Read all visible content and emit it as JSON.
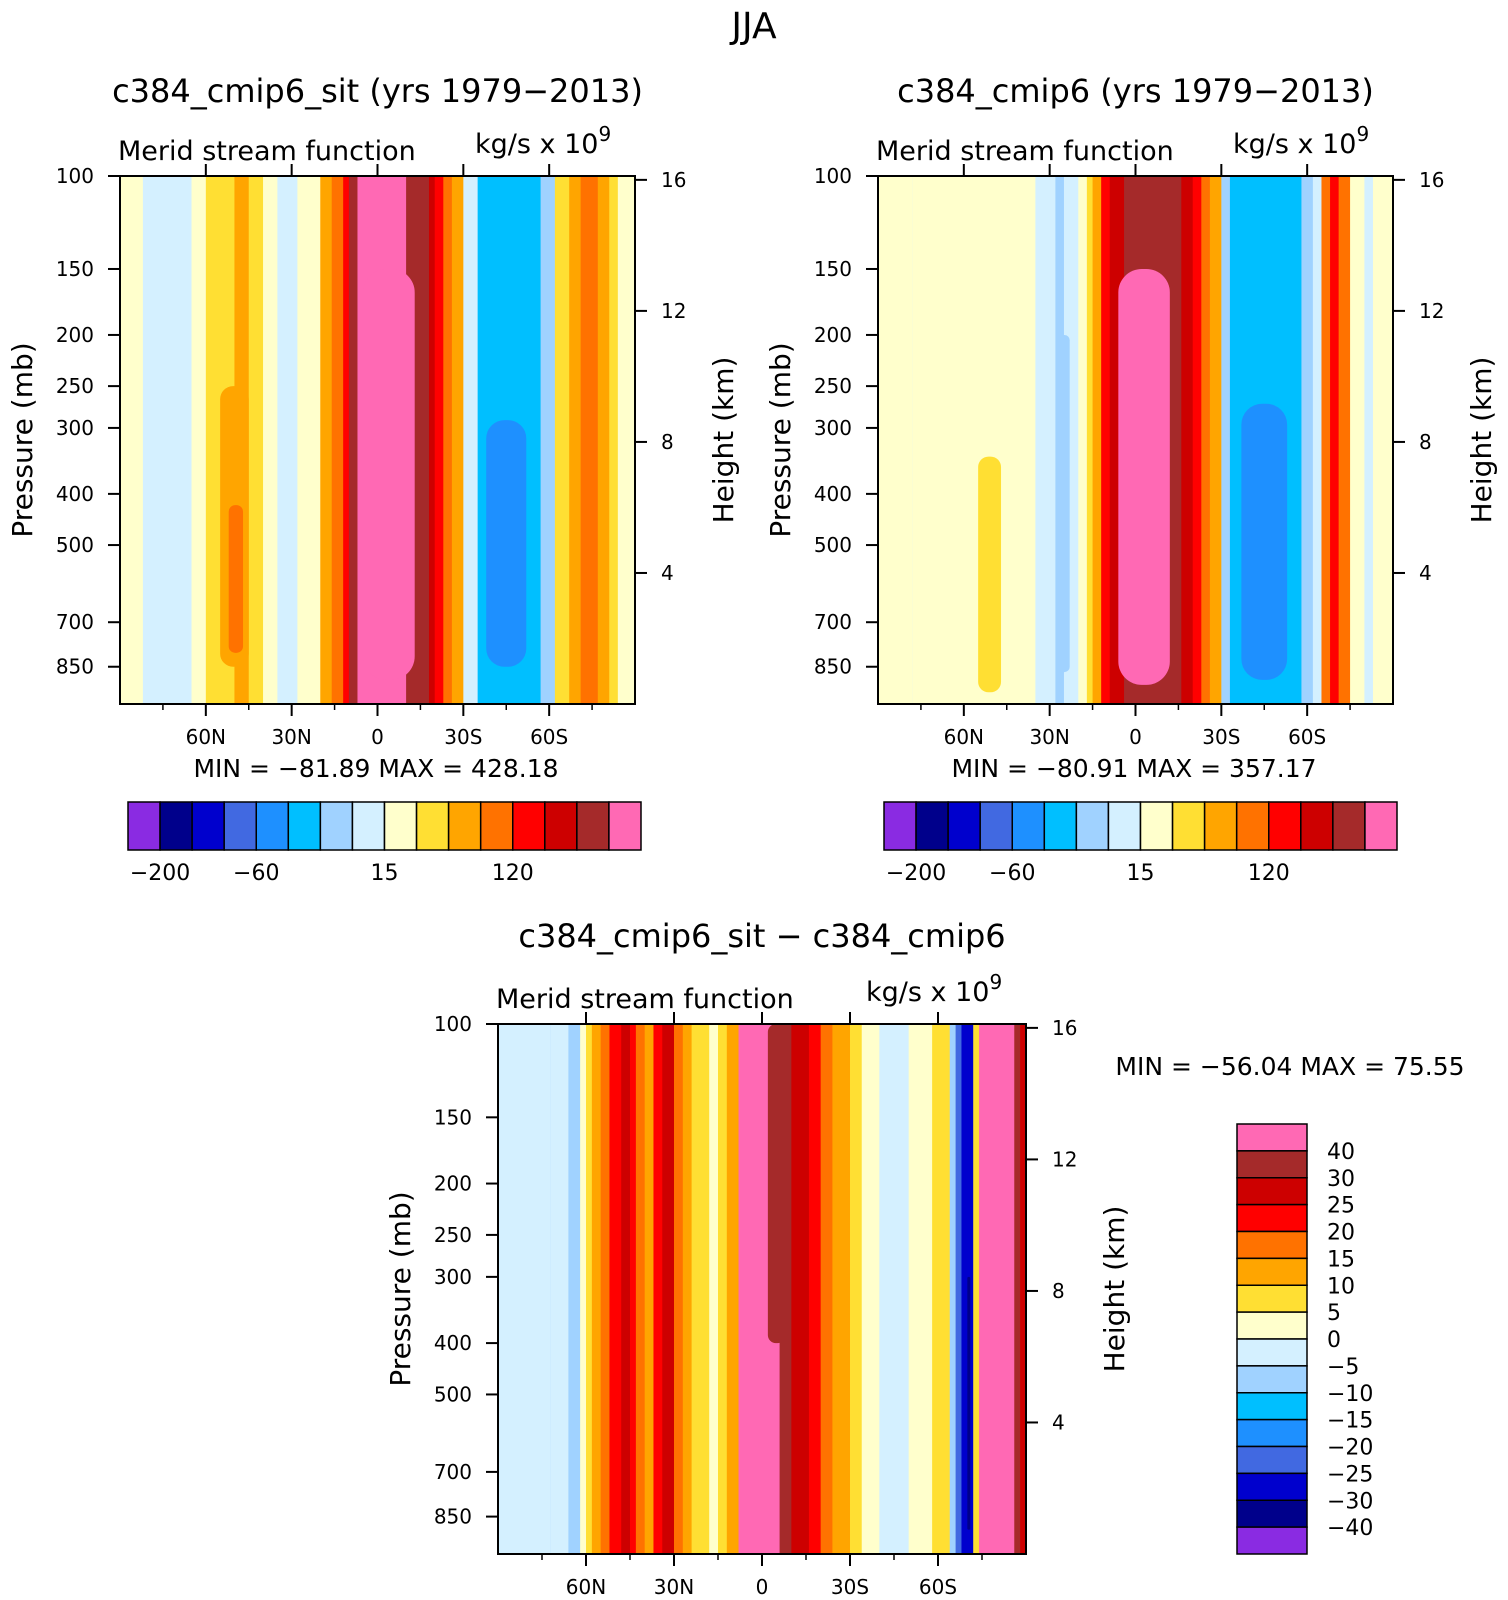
{
  "page_title": "JJA",
  "colors": {
    "abs": [
      "#8a2be2",
      "#00008b",
      "#0000cd",
      "#4169e1",
      "#1e90ff",
      "#00bfff",
      "#a0d2ff",
      "#d4f0ff",
      "#ffffcc",
      "#ffdf33",
      "#ffa500",
      "#ff7200",
      "#ff0000",
      "#cd0000",
      "#a52a2a",
      "#ff69b4"
    ],
    "diff": [
      "#8a2be2",
      "#00008b",
      "#0000cd",
      "#4169e1",
      "#1e90ff",
      "#00bfff",
      "#a0d2ff",
      "#d4f0ff",
      "#ffffcc",
      "#ffdf33",
      "#ffa500",
      "#ff7200",
      "#ff0000",
      "#cd0000",
      "#a52a2a",
      "#ff69b4"
    ]
  },
  "chart_data": [
    {
      "type": "heatmap",
      "title": "c384_cmip6_sit (yrs 1979−2013)",
      "left_label": "Merid stream function",
      "units_label": "kg/s x 10",
      "units_exp": "9",
      "ylabel": "Pressure (mb)",
      "y2label": "Height (km)",
      "x_ticks": [
        "60N",
        "30N",
        "0",
        "30S",
        "60S"
      ],
      "x_values": [
        60,
        30,
        0,
        -30,
        -60
      ],
      "xlim": [
        90,
        -90
      ],
      "y_ticks": [
        "100",
        "150",
        "200",
        "250",
        "300",
        "400",
        "500",
        "700",
        "850"
      ],
      "y_values": [
        100,
        150,
        200,
        250,
        300,
        400,
        500,
        700,
        850
      ],
      "ylim": [
        100,
        1000
      ],
      "y2_ticks": [
        "16",
        "12",
        "8",
        "4"
      ],
      "y2_values": [
        16,
        12,
        8,
        4
      ],
      "stats": "MIN = −81.89   MAX = 428.18",
      "min": -81.89,
      "max": 428.18,
      "colorbar_labels": [
        "−200",
        "−60",
        "15",
        "120"
      ],
      "colorbar_label_index": [
        1,
        4,
        8,
        12
      ],
      "bands": [
        [
          90,
          82,
          8
        ],
        [
          82,
          65,
          7
        ],
        [
          65,
          60,
          8
        ],
        [
          60,
          50,
          9
        ],
        [
          50,
          45,
          10
        ],
        [
          45,
          40,
          9
        ],
        [
          40,
          35,
          8
        ],
        [
          35,
          28,
          7
        ],
        [
          28,
          20,
          8
        ],
        [
          20,
          16,
          10
        ],
        [
          16,
          12,
          11
        ],
        [
          12,
          10,
          12
        ],
        [
          10,
          7,
          14
        ],
        [
          7,
          -10,
          15
        ],
        [
          -10,
          -18,
          14
        ],
        [
          -18,
          -20,
          13
        ],
        [
          -20,
          -23,
          12
        ],
        [
          -23,
          -26,
          11
        ],
        [
          -26,
          -30,
          10
        ],
        [
          -30,
          -35,
          7
        ],
        [
          -35,
          -57,
          5
        ],
        [
          -57,
          -62,
          6
        ],
        [
          -62,
          -67,
          9
        ],
        [
          -67,
          -71,
          10
        ],
        [
          -71,
          -77,
          11
        ],
        [
          -77,
          -81,
          10
        ],
        [
          -81,
          -84,
          9
        ],
        [
          -84,
          -90,
          8
        ]
      ],
      "blobs": [
        [
          55,
          45,
          250,
          850,
          10
        ],
        [
          52,
          47,
          420,
          800,
          11
        ],
        [
          -38,
          -52,
          290,
          850,
          4
        ],
        [
          5,
          -13,
          150,
          900,
          15
        ]
      ]
    },
    {
      "type": "heatmap",
      "title": "c384_cmip6 (yrs 1979−2013)",
      "left_label": "Merid stream function",
      "units_label": "kg/s x 10",
      "units_exp": "9",
      "ylabel": "Pressure (mb)",
      "y2label": "Height (km)",
      "x_ticks": [
        "60N",
        "30N",
        "0",
        "30S",
        "60S"
      ],
      "x_values": [
        60,
        30,
        0,
        -30,
        -60
      ],
      "xlim": [
        90,
        -90
      ],
      "y_ticks": [
        "100",
        "150",
        "200",
        "250",
        "300",
        "400",
        "500",
        "700",
        "850"
      ],
      "y_values": [
        100,
        150,
        200,
        250,
        300,
        400,
        500,
        700,
        850
      ],
      "ylim": [
        100,
        1000
      ],
      "y2_ticks": [
        "16",
        "12",
        "8",
        "4"
      ],
      "y2_values": [
        16,
        12,
        8,
        4
      ],
      "stats": "MIN = −80.91   MAX = 357.17",
      "min": -80.91,
      "max": 357.17,
      "colorbar_labels": [
        "−200",
        "−60",
        "15",
        "120"
      ],
      "colorbar_label_index": [
        1,
        4,
        8,
        12
      ],
      "bands": [
        [
          90,
          78,
          8
        ],
        [
          78,
          72,
          7
        ],
        [
          78,
          65,
          8
        ],
        [
          65,
          40,
          8
        ],
        [
          40,
          35,
          8
        ],
        [
          35,
          28,
          7
        ],
        [
          28,
          25,
          6
        ],
        [
          25,
          20,
          7
        ],
        [
          20,
          17,
          8
        ],
        [
          17,
          15,
          9
        ],
        [
          15,
          12,
          10
        ],
        [
          12,
          9,
          12
        ],
        [
          9,
          4,
          13
        ],
        [
          4,
          -16,
          14
        ],
        [
          -16,
          -20,
          13
        ],
        [
          -20,
          -23,
          12
        ],
        [
          -23,
          -26,
          11
        ],
        [
          -26,
          -30,
          10
        ],
        [
          -30,
          -33,
          6
        ],
        [
          -33,
          -58,
          5
        ],
        [
          -58,
          -62,
          6
        ],
        [
          -62,
          -65,
          7
        ],
        [
          -65,
          -68,
          11
        ],
        [
          -68,
          -71,
          12
        ],
        [
          -71,
          -75,
          11
        ],
        [
          -75,
          -80,
          8
        ],
        [
          -80,
          -83,
          7
        ],
        [
          -83,
          -90,
          8
        ]
      ],
      "blobs": [
        [
          55,
          47,
          340,
          950,
          9
        ],
        [
          27,
          23,
          200,
          870,
          6
        ],
        [
          6,
          -12,
          150,
          920,
          15
        ],
        [
          -37,
          -53,
          270,
          900,
          4
        ]
      ]
    },
    {
      "type": "heatmap",
      "title": "c384_cmip6_sit − c384_cmip6",
      "left_label": "Merid stream function",
      "units_label": "kg/s x 10",
      "units_exp": "9",
      "ylabel": "Pressure (mb)",
      "y2label": "Height (km)",
      "x_ticks": [
        "60N",
        "30N",
        "0",
        "30S",
        "60S"
      ],
      "x_values": [
        60,
        30,
        0,
        -30,
        -60
      ],
      "xlim": [
        90,
        -90
      ],
      "y_ticks": [
        "100",
        "150",
        "200",
        "250",
        "300",
        "400",
        "500",
        "700",
        "850"
      ],
      "y_values": [
        100,
        150,
        200,
        250,
        300,
        400,
        500,
        700,
        850
      ],
      "ylim": [
        100,
        1000
      ],
      "y2_ticks": [
        "16",
        "12",
        "8",
        "4"
      ],
      "y2_values": [
        16,
        12,
        8,
        4
      ],
      "stats": "MIN = −56.04   MAX =  75.55",
      "min": -56.04,
      "max": 75.55,
      "colorbar_labels": [
        "40",
        "30",
        "25",
        "20",
        "15",
        "10",
        "5",
        "0",
        "−5",
        "−10",
        "−15",
        "−20",
        "−25",
        "−30",
        "−40"
      ],
      "bands": [
        [
          90,
          72,
          7
        ],
        [
          72,
          70,
          6
        ],
        [
          72,
          66,
          7
        ],
        [
          66,
          62,
          6
        ],
        [
          62,
          60,
          8
        ],
        [
          60,
          58,
          9
        ],
        [
          58,
          55,
          10
        ],
        [
          55,
          52,
          11
        ],
        [
          52,
          48,
          12
        ],
        [
          48,
          45,
          13
        ],
        [
          45,
          43,
          12
        ],
        [
          43,
          40,
          11
        ],
        [
          40,
          37,
          10
        ],
        [
          37,
          34,
          12
        ],
        [
          34,
          30,
          13
        ],
        [
          30,
          27,
          11
        ],
        [
          27,
          24,
          10
        ],
        [
          24,
          18,
          9
        ],
        [
          18,
          15,
          8
        ],
        [
          15,
          12,
          9
        ],
        [
          12,
          8,
          10
        ],
        [
          8,
          -6,
          15
        ],
        [
          -6,
          -10,
          14
        ],
        [
          -10,
          -16,
          13
        ],
        [
          -16,
          -20,
          12
        ],
        [
          -20,
          -24,
          11
        ],
        [
          -24,
          -30,
          10
        ],
        [
          -30,
          -34,
          9
        ],
        [
          -34,
          -40,
          8
        ],
        [
          -40,
          -50,
          7
        ],
        [
          -50,
          -58,
          8
        ],
        [
          -58,
          -64,
          9
        ],
        [
          -64,
          -66,
          6
        ],
        [
          -66,
          -68,
          3
        ],
        [
          -68,
          -72,
          2
        ],
        [
          -72,
          -74,
          9
        ],
        [
          -74,
          -86,
          15
        ],
        [
          -86,
          -88,
          14
        ],
        [
          -88,
          -90,
          13
        ]
      ],
      "blobs": [
        [
          -2,
          -8,
          100,
          400,
          14
        ],
        [
          -70,
          -71,
          300,
          900,
          1
        ]
      ]
    }
  ]
}
